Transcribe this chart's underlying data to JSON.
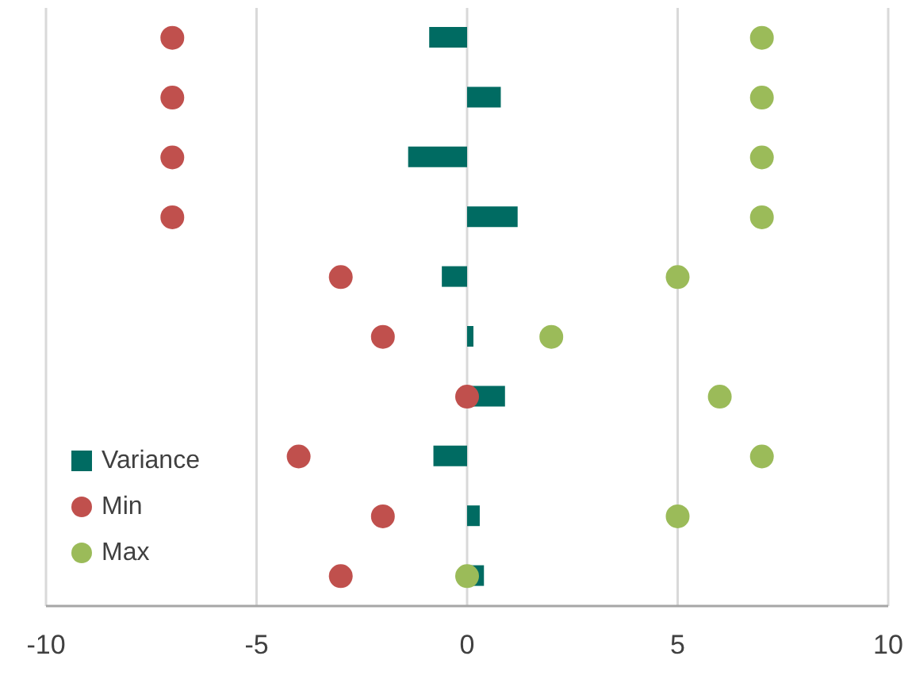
{
  "chart_data": {
    "type": "bar",
    "orientation": "horizontal",
    "categories": [
      null,
      null,
      null,
      null,
      null,
      null,
      null,
      null,
      null,
      null
    ],
    "series": [
      {
        "name": "Variance",
        "color": "#006b62",
        "values": [
          -0.9,
          0.8,
          -1.4,
          1.2,
          -0.6,
          0.15,
          0.9,
          -0.8,
          0.3,
          0.4
        ]
      },
      {
        "name": "Min",
        "type": "scatter",
        "color": "#c0504d",
        "values": [
          -7,
          -7,
          -7,
          -7,
          -3,
          -2,
          0,
          -4,
          -2,
          -3
        ]
      },
      {
        "name": "Max",
        "type": "scatter",
        "color": "#9bbb59",
        "values": [
          7,
          7,
          7,
          7,
          5,
          2,
          6,
          7,
          5,
          0
        ]
      }
    ],
    "xlim": [
      -10,
      10
    ],
    "xticks": [
      -10,
      -5,
      0,
      5,
      10
    ],
    "grid": "x",
    "legend": "bottom left",
    "marker": "circle"
  }
}
